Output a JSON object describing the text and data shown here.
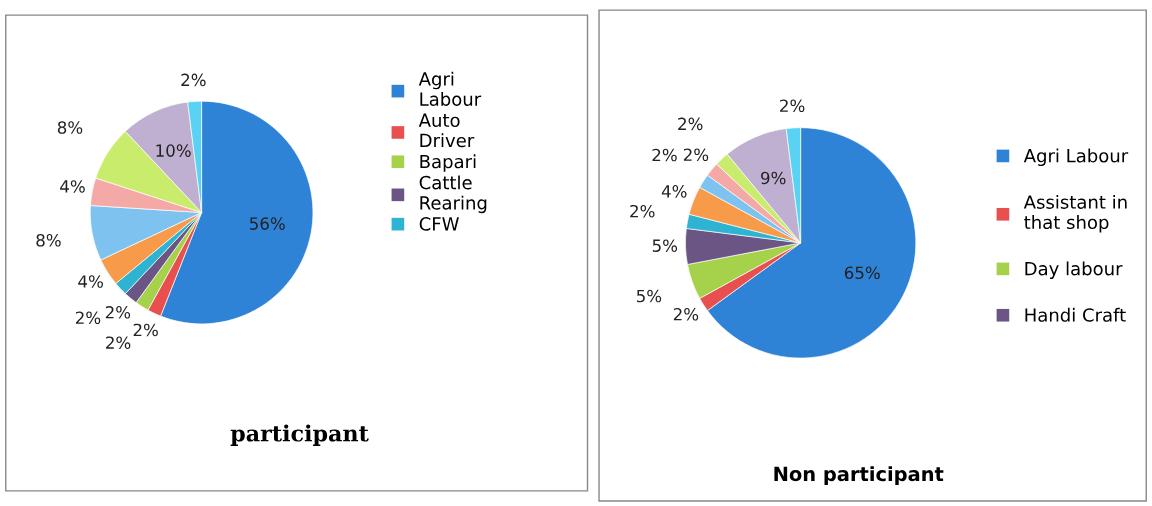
{
  "chart_data": [
    {
      "type": "pie",
      "title": "participant",
      "legend": "right",
      "categories": [
        "Agri Labour",
        "Auto Driver",
        "Bapari",
        "Cattle Rearing",
        "CFW",
        null,
        null,
        null,
        null,
        null,
        null
      ],
      "values": [
        56,
        2,
        2,
        2,
        2,
        4,
        8,
        4,
        8,
        10,
        2
      ],
      "value_labels": [
        "56%",
        "2%",
        "2%",
        "2%",
        "2%",
        "4%",
        "8%",
        "4%",
        "8%",
        "10%",
        "2%"
      ],
      "colors": [
        "#2e83d6",
        "#e8504f",
        "#a6d14a",
        "#6a5585",
        "#2eb3d3",
        "#f79a4a",
        "#7ec3ef",
        "#f5a9a6",
        "#c9ec6c",
        "#bfb0d2",
        "#5ad2f3"
      ]
    },
    {
      "type": "pie",
      "title": "Non participant",
      "legend": "right",
      "categories": [
        "Agri Labour",
        "Assistant in that shop",
        "Day labour",
        "Handi Craft",
        null,
        null,
        null,
        null,
        null,
        null,
        null
      ],
      "values": [
        65,
        2,
        5,
        5,
        2,
        4,
        2,
        2,
        2,
        9,
        2
      ],
      "value_labels": [
        "65%",
        "2%",
        "5%",
        "5%",
        "2%",
        "4%",
        "2%",
        "2%",
        "2%",
        "9%",
        "2%"
      ],
      "colors": [
        "#2e83d6",
        "#e8504f",
        "#a6d14a",
        "#6a5585",
        "#2eb3d3",
        "#f79a4a",
        "#7ec3ef",
        "#f5a9a6",
        "#c9ec6c",
        "#bfb0d2",
        "#5ad2f3"
      ]
    }
  ]
}
